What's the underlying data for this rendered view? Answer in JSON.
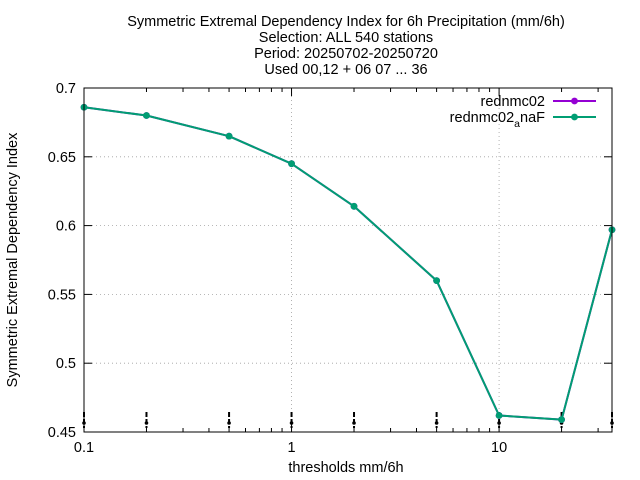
{
  "chart_data": {
    "type": "line",
    "title": [
      "Symmetric Extremal Dependency Index  for 6h Precipitation (mm/6h)",
      "Selection: ALL    540 stations",
      "Period: 20250702-20250720",
      "Used 00,12 + 06 07 ... 36"
    ],
    "xlabel": "thresholds mm/6h",
    "ylabel": "Symmetric Extremal Dependency Index",
    "x_scale": "log",
    "xlim": [
      0.1,
      35
    ],
    "ylim": [
      0.45,
      0.7
    ],
    "x_ticks": [
      0.1,
      1,
      10
    ],
    "x_tick_labels": [
      "0.1",
      "1",
      "10"
    ],
    "y_ticks": [
      0.45,
      0.5,
      0.55,
      0.6,
      0.65,
      0.7
    ],
    "y_tick_labels": [
      "0.45",
      "0.5",
      "0.55",
      "0.6",
      "0.65",
      "0.7"
    ],
    "grid": true,
    "legend_position": "top-right",
    "threshold_markers": [
      0.1,
      0.2,
      0.5,
      1,
      2,
      5,
      10,
      20,
      35
    ],
    "x": [
      0.1,
      0.2,
      0.5,
      1,
      2,
      5,
      10,
      20,
      35
    ],
    "series": [
      {
        "name": "rednmc02",
        "legend_base": "rednmc02",
        "legend_sub": "",
        "legend_tail": "",
        "color": "#9400d3",
        "values": [
          0.686,
          0.68,
          0.665,
          0.645,
          0.614,
          0.56,
          0.462,
          0.459,
          0.597
        ]
      },
      {
        "name": "rednmc02_anaF",
        "legend_base": "rednmc02",
        "legend_sub": "a",
        "legend_tail": "naF",
        "color": "#009e73",
        "values": [
          0.686,
          0.68,
          0.665,
          0.645,
          0.614,
          0.56,
          0.462,
          0.459,
          0.597
        ]
      }
    ]
  }
}
